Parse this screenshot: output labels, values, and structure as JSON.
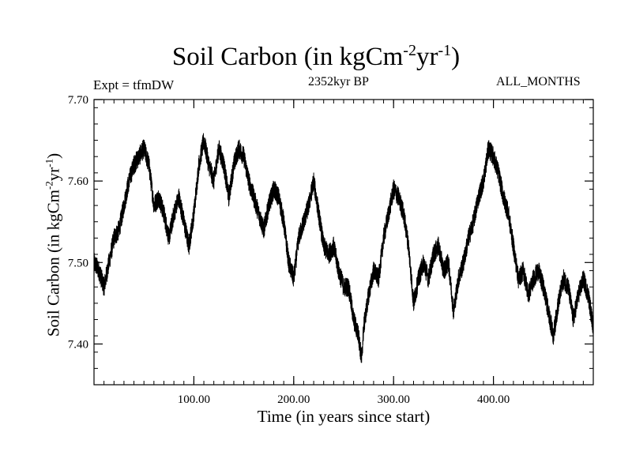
{
  "colors": {
    "line": "#000000",
    "background": "#ffffff"
  },
  "chart_data": {
    "type": "line",
    "title": {
      "base": "Soil Carbon (in kgCm",
      "sup1": "-2",
      "mid": "yr",
      "sup2": "-1",
      "end": ")"
    },
    "experiment_label": "Expt = tfmDW",
    "subtitle": "2352kyr BP",
    "months_label": "ALL_MONTHS",
    "xlabel": "Time (in years since start)",
    "ylabel": {
      "base": "Soil Carbon (in kgCm",
      "sup1": "-2",
      "mid": "yr",
      "sup2": "-1",
      "end": ")"
    },
    "xlim": [
      0,
      500
    ],
    "ylim": [
      7.35,
      7.7
    ],
    "x_ticks": [
      {
        "value": 100,
        "label": "100.00"
      },
      {
        "value": 200,
        "label": "200.00"
      },
      {
        "value": 300,
        "label": "300.00"
      },
      {
        "value": 400,
        "label": "400.00"
      }
    ],
    "y_ticks": [
      {
        "value": 7.4,
        "label": "7.40"
      },
      {
        "value": 7.5,
        "label": "7.50"
      },
      {
        "value": 7.6,
        "label": "7.60"
      },
      {
        "value": 7.7,
        "label": "7.70"
      }
    ],
    "x_minor_step": 10,
    "y_minor_step": 0.02,
    "monthly_noise_amplitude": 0.012,
    "series": [
      {
        "name": "Soil Carbon",
        "x": [
          0,
          5,
          10,
          15,
          20,
          25,
          30,
          35,
          40,
          45,
          50,
          55,
          60,
          65,
          70,
          75,
          80,
          85,
          90,
          95,
          100,
          105,
          110,
          115,
          120,
          125,
          130,
          135,
          140,
          145,
          150,
          155,
          160,
          165,
          170,
          175,
          180,
          185,
          190,
          195,
          200,
          205,
          210,
          215,
          220,
          225,
          230,
          235,
          240,
          245,
          250,
          255,
          260,
          265,
          268,
          270,
          275,
          280,
          285,
          290,
          295,
          300,
          305,
          310,
          315,
          320,
          325,
          330,
          335,
          340,
          345,
          350,
          355,
          360,
          365,
          370,
          375,
          380,
          385,
          390,
          395,
          400,
          405,
          410,
          415,
          420,
          425,
          430,
          435,
          440,
          445,
          450,
          455,
          460,
          465,
          470,
          475,
          480,
          485,
          490,
          495,
          500
        ],
        "y": [
          7.5,
          7.49,
          7.47,
          7.5,
          7.53,
          7.54,
          7.57,
          7.6,
          7.62,
          7.63,
          7.64,
          7.62,
          7.57,
          7.58,
          7.56,
          7.53,
          7.56,
          7.58,
          7.55,
          7.52,
          7.56,
          7.62,
          7.65,
          7.62,
          7.6,
          7.64,
          7.62,
          7.58,
          7.62,
          7.64,
          7.63,
          7.6,
          7.58,
          7.56,
          7.54,
          7.57,
          7.59,
          7.58,
          7.55,
          7.5,
          7.48,
          7.53,
          7.55,
          7.57,
          7.6,
          7.56,
          7.52,
          7.51,
          7.52,
          7.49,
          7.47,
          7.47,
          7.43,
          7.41,
          7.38,
          7.42,
          7.46,
          7.49,
          7.48,
          7.53,
          7.56,
          7.59,
          7.58,
          7.56,
          7.52,
          7.45,
          7.48,
          7.5,
          7.48,
          7.51,
          7.52,
          7.49,
          7.5,
          7.44,
          7.48,
          7.5,
          7.53,
          7.55,
          7.58,
          7.6,
          7.64,
          7.63,
          7.61,
          7.58,
          7.56,
          7.52,
          7.48,
          7.49,
          7.46,
          7.48,
          7.49,
          7.47,
          7.44,
          7.41,
          7.45,
          7.48,
          7.47,
          7.43,
          7.46,
          7.48,
          7.46,
          7.42
        ]
      }
    ]
  }
}
